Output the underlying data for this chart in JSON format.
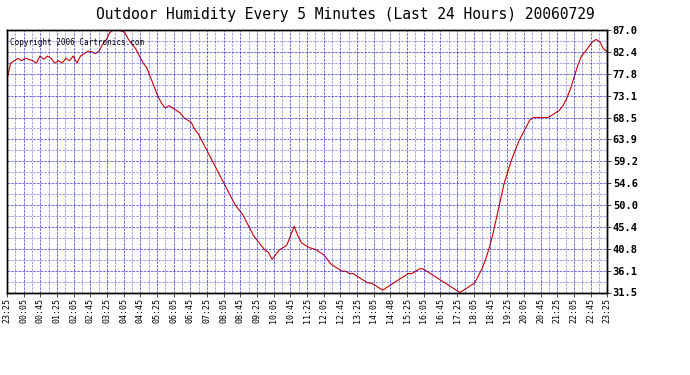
{
  "title": "Outdoor Humidity Every 5 Minutes (Last 24 Hours) 20060729",
  "copyright": "Copyright 2006 Cartronics.com",
  "ylabel_right": [
    "87.0",
    "82.4",
    "77.8",
    "73.1",
    "68.5",
    "63.9",
    "59.2",
    "54.6",
    "50.0",
    "45.4",
    "40.8",
    "36.1",
    "31.5"
  ],
  "y_values": [
    87.0,
    82.4,
    77.8,
    73.1,
    68.5,
    63.9,
    59.2,
    54.6,
    50.0,
    45.4,
    40.8,
    36.1,
    31.5
  ],
  "ylim": [
    31.5,
    87.0
  ],
  "line_color": "#cc0000",
  "bg_color": "#ffffff",
  "grid_color": "#0000cc",
  "title_fontsize": 11,
  "x_labels": [
    "23:25",
    "00:05",
    "00:45",
    "01:25",
    "02:05",
    "02:45",
    "03:25",
    "04:05",
    "04:45",
    "05:25",
    "06:05",
    "06:45",
    "07:25",
    "08:05",
    "08:45",
    "09:25",
    "10:05",
    "10:45",
    "11:25",
    "12:05",
    "12:45",
    "13:25",
    "14:05",
    "14:48",
    "15:25",
    "16:05",
    "16:45",
    "17:25",
    "18:05",
    "18:45",
    "19:25",
    "20:05",
    "20:45",
    "21:25",
    "22:05",
    "22:45",
    "23:25"
  ],
  "humidity_data": [
    76.5,
    80.0,
    80.5,
    81.0,
    80.5,
    81.0,
    80.8,
    80.5,
    80.0,
    81.5,
    80.8,
    81.5,
    81.0,
    80.0,
    80.5,
    80.0,
    81.0,
    80.5,
    81.5,
    80.0,
    81.5,
    82.0,
    82.5,
    82.4,
    82.0,
    82.5,
    84.0,
    85.0,
    86.5,
    87.0,
    87.0,
    86.8,
    86.5,
    85.0,
    84.0,
    83.0,
    81.5,
    80.0,
    79.0,
    77.0,
    75.0,
    73.0,
    71.5,
    70.5,
    71.0,
    70.5,
    70.0,
    69.5,
    68.5,
    68.0,
    67.5,
    66.0,
    65.0,
    63.5,
    62.0,
    60.5,
    59.0,
    57.5,
    56.0,
    54.5,
    53.0,
    51.5,
    50.0,
    49.0,
    48.0,
    46.5,
    45.0,
    43.5,
    42.5,
    41.5,
    40.5,
    40.0,
    38.5,
    39.5,
    40.5,
    41.0,
    41.5,
    43.5,
    45.5,
    43.5,
    42.0,
    41.5,
    41.0,
    40.8,
    40.5,
    40.0,
    39.5,
    38.5,
    37.5,
    37.0,
    36.5,
    36.0,
    36.0,
    35.5,
    35.5,
    35.0,
    34.5,
    34.0,
    33.5,
    33.5,
    33.0,
    32.5,
    32.0,
    32.5,
    33.0,
    33.5,
    34.0,
    34.5,
    35.0,
    35.5,
    35.5,
    36.0,
    36.5,
    36.5,
    36.0,
    35.5,
    35.0,
    34.5,
    34.0,
    33.5,
    33.0,
    32.5,
    32.0,
    31.5,
    32.0,
    32.5,
    33.0,
    33.5,
    35.0,
    36.5,
    38.5,
    41.0,
    44.0,
    47.5,
    51.0,
    54.5,
    57.0,
    59.5,
    61.5,
    63.5,
    65.0,
    66.5,
    68.0,
    68.5,
    68.5,
    68.5,
    68.5,
    68.5,
    69.0,
    69.5,
    70.0,
    71.0,
    72.5,
    74.5,
    77.0,
    79.5,
    81.5,
    82.4,
    83.5,
    84.5,
    85.0,
    84.5,
    83.0,
    82.4
  ]
}
